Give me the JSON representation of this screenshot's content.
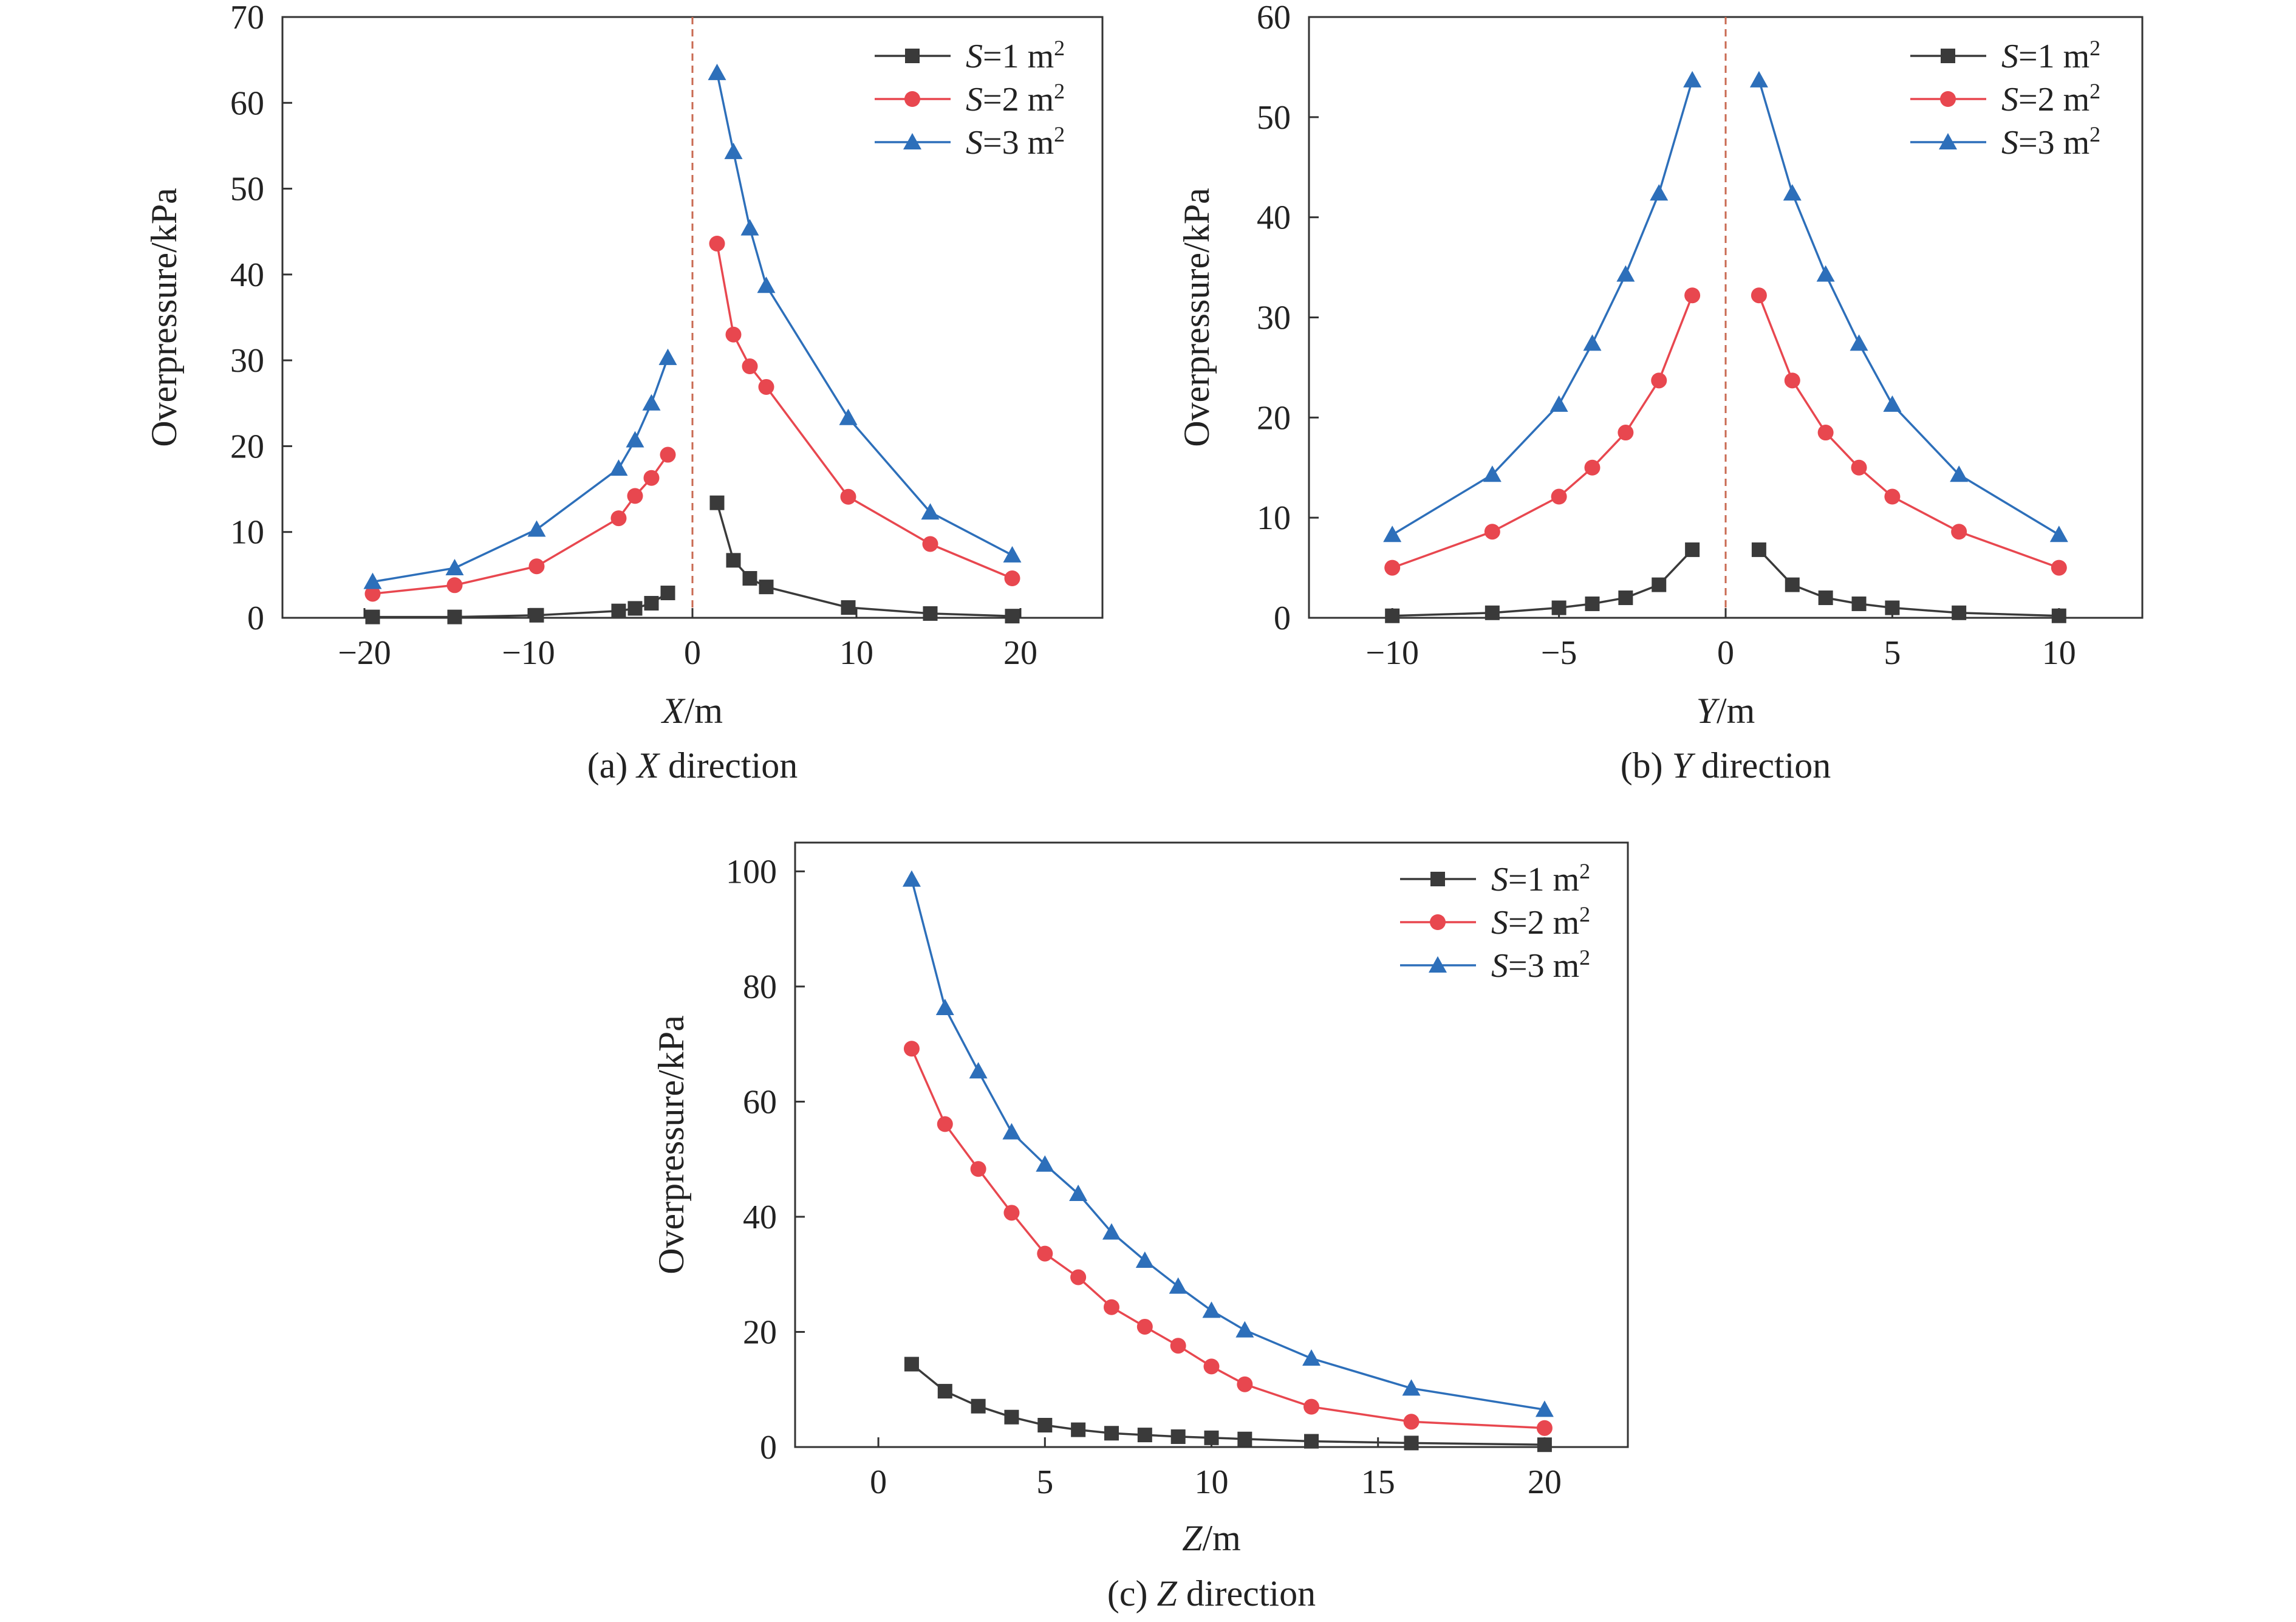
{
  "chart_data": [
    {
      "type": "line",
      "caption": "(a) X direction",
      "xlabel": "X/m",
      "ylabel": "Overpressure/kPa",
      "xlim": [
        -25,
        25
      ],
      "ylim": [
        0,
        70
      ],
      "xticks": [
        -20,
        -10,
        0,
        10,
        20
      ],
      "yticks": [
        0,
        10,
        20,
        30,
        40,
        50,
        60,
        70
      ],
      "zero_line": true,
      "legend": "top-right",
      "grid": false,
      "series": [
        {
          "name": "S=1 m²",
          "marker": "square",
          "color": "#3a3a3a",
          "segments": [
            {
              "x": [
                -19.5,
                -14.5,
                -9.5,
                -4.5,
                -3.5,
                -2.5,
                -1.5
              ],
              "y": [
                0.1,
                0.1,
                0.3,
                0.8,
                1.1,
                1.7,
                2.9
              ]
            },
            {
              "x": [
                1.5,
                2.5,
                3.5,
                4.5,
                9.5,
                14.5,
                19.5
              ],
              "y": [
                13.4,
                6.7,
                4.6,
                3.6,
                1.2,
                0.5,
                0.2
              ]
            }
          ]
        },
        {
          "name": "S=2 m²",
          "marker": "circle",
          "color": "#e8474f",
          "segments": [
            {
              "x": [
                -19.5,
                -14.5,
                -9.5,
                -4.5,
                -3.5,
                -2.5,
                -1.5
              ],
              "y": [
                2.8,
                3.8,
                6.0,
                11.6,
                14.2,
                16.3,
                19.0
              ]
            },
            {
              "x": [
                1.5,
                2.5,
                3.5,
                4.5,
                9.5,
                14.5,
                19.5
              ],
              "y": [
                43.6,
                33.0,
                29.3,
                26.9,
                14.1,
                8.6,
                4.6
              ]
            }
          ]
        },
        {
          "name": "S=3 m²",
          "marker": "triangle",
          "color": "#2d6fba",
          "segments": [
            {
              "x": [
                -19.5,
                -14.5,
                -9.5,
                -4.5,
                -3.5,
                -2.5,
                -1.5
              ],
              "y": [
                4.2,
                5.8,
                10.3,
                17.4,
                20.7,
                25.0,
                30.3
              ]
            },
            {
              "x": [
                1.5,
                2.5,
                3.5,
                4.5,
                9.5,
                14.5,
                19.5
              ],
              "y": [
                63.5,
                54.3,
                45.4,
                38.7,
                23.3,
                12.3,
                7.3
              ]
            }
          ]
        }
      ]
    },
    {
      "type": "line",
      "caption": "(b) Y direction",
      "xlabel": "Y/m",
      "ylabel": "Overpressure/kPa",
      "xlim": [
        -12.5,
        12.5
      ],
      "ylim": [
        0,
        60
      ],
      "xticks": [
        -10,
        -5,
        0,
        5,
        10
      ],
      "yticks": [
        0,
        10,
        20,
        30,
        40,
        50,
        60
      ],
      "zero_line": true,
      "legend": "top-right",
      "grid": false,
      "series": [
        {
          "name": "S=1 m²",
          "marker": "square",
          "color": "#3a3a3a",
          "segments": [
            {
              "x": [
                -10,
                -7,
                -5,
                -4,
                -3,
                -2,
                -1
              ],
              "y": [
                0.2,
                0.5,
                1.0,
                1.4,
                2.0,
                3.3,
                6.8
              ]
            },
            {
              "x": [
                1,
                2,
                3,
                4,
                5,
                7,
                10
              ],
              "y": [
                6.8,
                3.3,
                2.0,
                1.4,
                1.0,
                0.5,
                0.2
              ]
            }
          ]
        },
        {
          "name": "S=2 m²",
          "marker": "circle",
          "color": "#e8474f",
          "segments": [
            {
              "x": [
                -10,
                -7,
                -5,
                -4,
                -3,
                -2,
                -1
              ],
              "y": [
                5.0,
                8.6,
                12.1,
                15.0,
                18.5,
                23.7,
                32.2
              ]
            },
            {
              "x": [
                1,
                2,
                3,
                4,
                5,
                7,
                10
              ],
              "y": [
                32.2,
                23.7,
                18.5,
                15.0,
                12.1,
                8.6,
                5.0
              ]
            }
          ]
        },
        {
          "name": "S=3 m²",
          "marker": "triangle",
          "color": "#2d6fba",
          "segments": [
            {
              "x": [
                -10,
                -7,
                -5,
                -4,
                -3,
                -2,
                -1
              ],
              "y": [
                8.3,
                14.3,
                21.3,
                27.4,
                34.3,
                42.4,
                53.7
              ]
            },
            {
              "x": [
                1,
                2,
                3,
                4,
                5,
                7,
                10
              ],
              "y": [
                53.7,
                42.4,
                34.3,
                27.4,
                21.3,
                14.3,
                8.3
              ]
            }
          ]
        }
      ]
    },
    {
      "type": "line",
      "caption": "(c) Z direction",
      "xlabel": "Z/m",
      "ylabel": "Overpressure/kPa",
      "xlim": [
        -2.5,
        22.5
      ],
      "ylim": [
        0,
        105
      ],
      "xticks": [
        0,
        5,
        10,
        15,
        20
      ],
      "yticks": [
        0,
        20,
        40,
        60,
        80,
        100
      ],
      "zero_line": false,
      "legend": "top-right",
      "grid": false,
      "series": [
        {
          "name": "S=1 m²",
          "marker": "square",
          "color": "#3a3a3a",
          "segments": [
            {
              "x": [
                1,
                2,
                3,
                4,
                5,
                6,
                7,
                8,
                9,
                10,
                11,
                13,
                16,
                20
              ],
              "y": [
                14.4,
                9.7,
                7.1,
                5.2,
                3.8,
                3.0,
                2.4,
                2.1,
                1.8,
                1.6,
                1.4,
                1.0,
                0.7,
                0.4
              ]
            }
          ]
        },
        {
          "name": "S=2 m²",
          "marker": "circle",
          "color": "#e8474f",
          "segments": [
            {
              "x": [
                1,
                2,
                3,
                4,
                5,
                6,
                7,
                8,
                9,
                10,
                11,
                13,
                16,
                20
              ],
              "y": [
                69.2,
                56.1,
                48.3,
                40.7,
                33.6,
                29.5,
                24.3,
                20.9,
                17.6,
                14.0,
                10.9,
                7.0,
                4.4,
                3.3
              ]
            }
          ]
        },
        {
          "name": "S=3 m²",
          "marker": "triangle",
          "color": "#2d6fba",
          "segments": [
            {
              "x": [
                1,
                2,
                3,
                4,
                5,
                6,
                7,
                8,
                9,
                10,
                11,
                13,
                16,
                20
              ],
              "y": [
                98.6,
                76.3,
                65.3,
                54.7,
                49.1,
                44.0,
                37.3,
                32.4,
                27.9,
                23.7,
                20.3,
                15.4,
                10.2,
                6.5
              ]
            }
          ]
        }
      ]
    }
  ]
}
